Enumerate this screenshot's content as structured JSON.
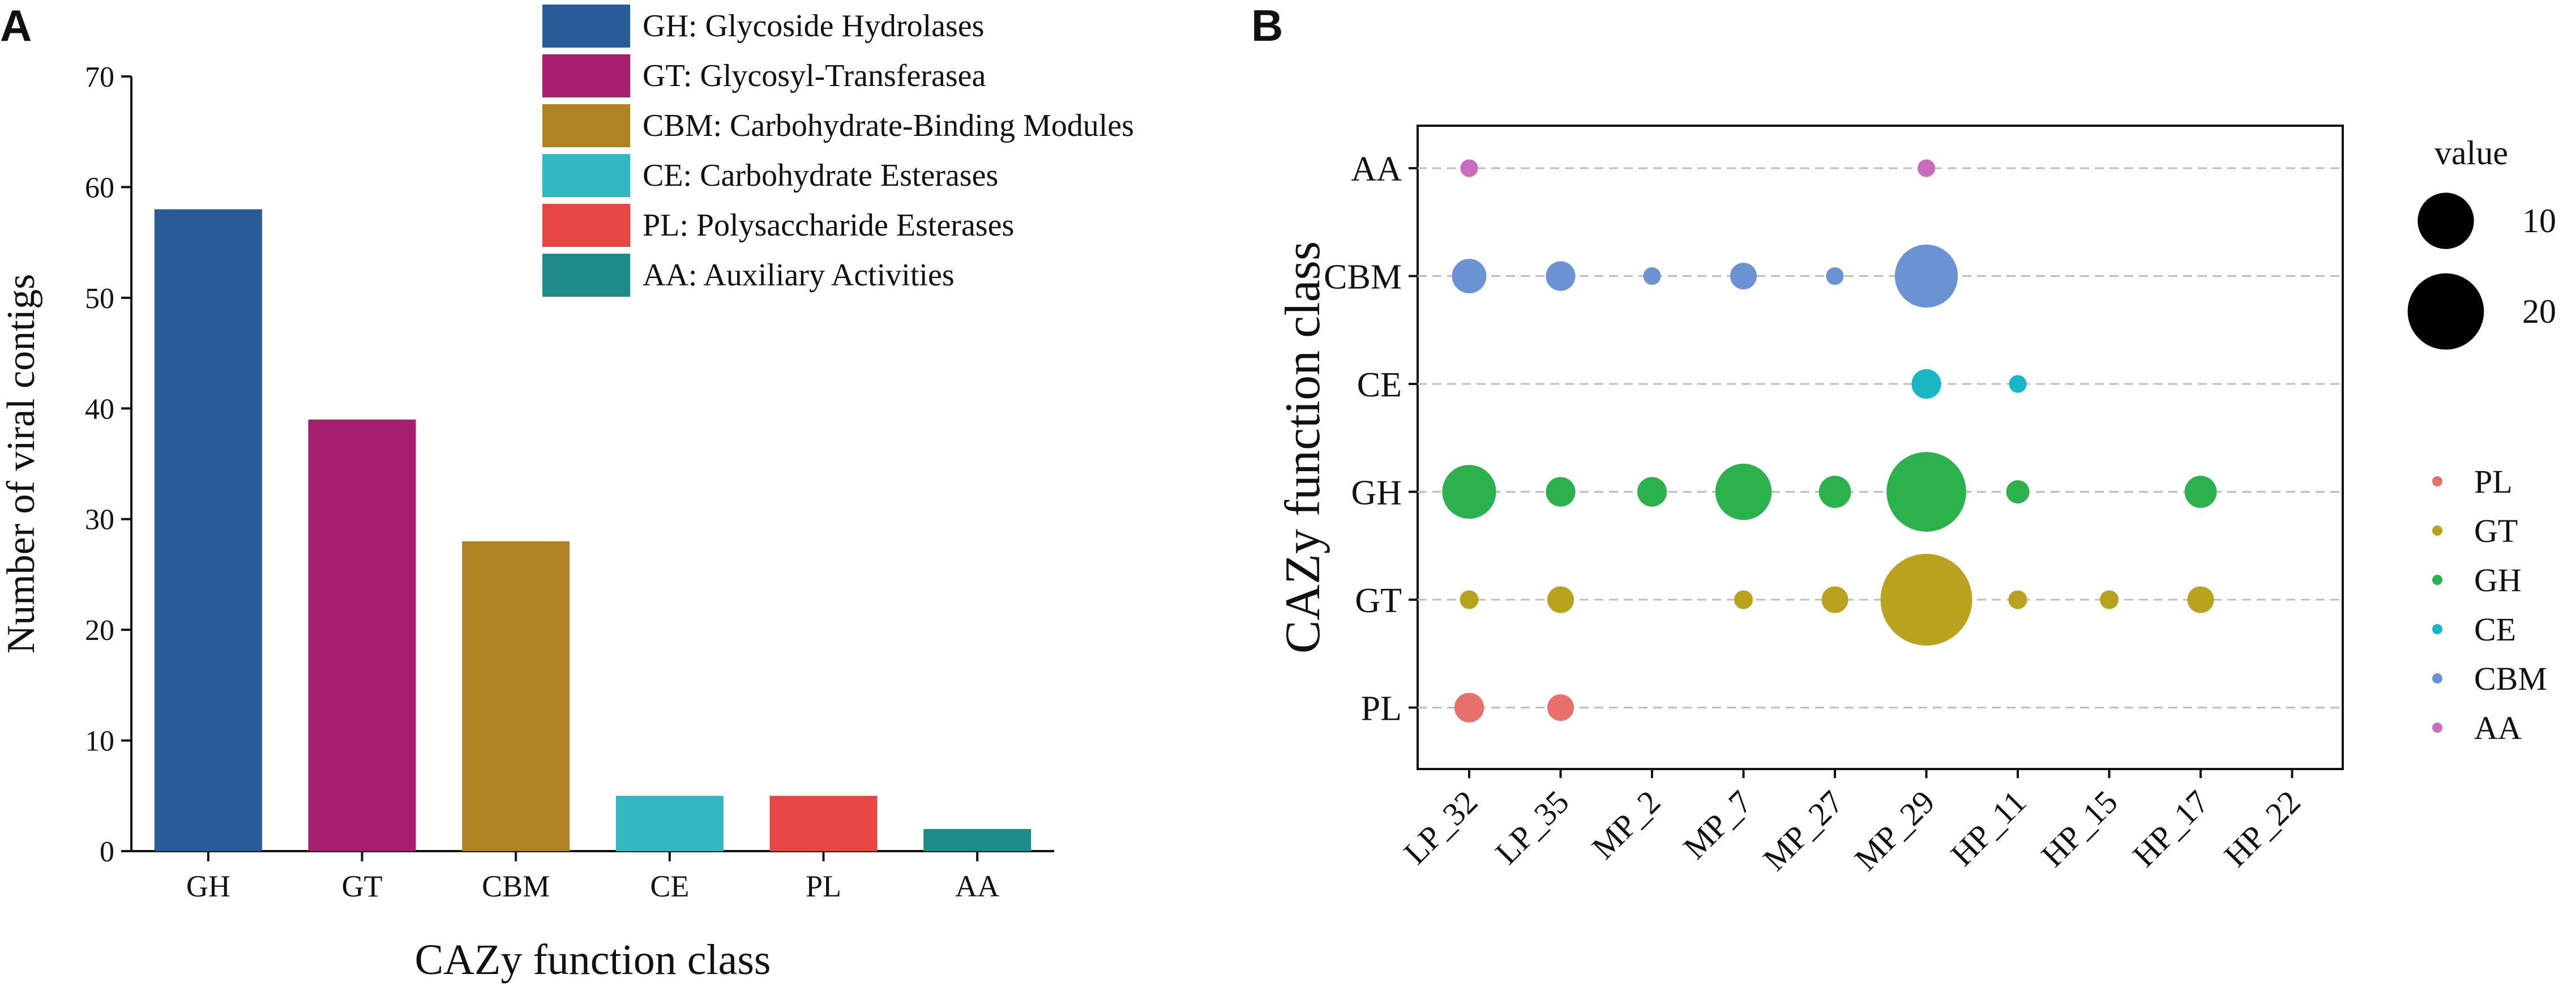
{
  "panel_labels": {
    "a": "A",
    "b": "B"
  },
  "chart_data": [
    {
      "type": "bar",
      "title": "",
      "categories": [
        "GH",
        "GT",
        "CBM",
        "CE",
        "PL",
        "AA"
      ],
      "tick_labels": [
        "GH",
        "GT",
        "CBM",
        "CE",
        "PL",
        "AA"
      ],
      "values": [
        58,
        39,
        28,
        5,
        5,
        2
      ],
      "colors": [
        "#285b97",
        "#a61f6c",
        "#ae8323",
        "#32b8c1",
        "#e84545",
        "#1e8b88"
      ],
      "xlabel": "CAZy function class",
      "ylabel": "Number of viral contigs",
      "ylim": [
        0,
        70
      ],
      "yticks": [
        0,
        10,
        20,
        30,
        40,
        50,
        60,
        70
      ],
      "legend": {
        "position": "top-right",
        "entries": [
          "GH: Glycoside Hydrolases",
          "GT: Glycosyl-Transferasea",
          "CBM: Carbohydrate-Binding Modules",
          "CE: Carbohydrate Esterases",
          "PL: Polysaccharide Esterases",
          "AA: Auxiliary Activities"
        ]
      }
    },
    {
      "type": "scatter",
      "subtype": "bubble",
      "title": "",
      "x_categories": [
        "LP_32",
        "LP_35",
        "MP_2",
        "MP_7",
        "MP_27",
        "MP_29",
        "HP_11",
        "HP_15",
        "HP_17",
        "HP_22"
      ],
      "y_categories": [
        "AA",
        "CBM",
        "CE",
        "GH",
        "GT",
        "PL"
      ],
      "ylabel": "CAZy function class",
      "xlabel": "",
      "grid": "dashed horizontal",
      "series": [
        {
          "name": "PL",
          "color": "#e8706a",
          "points": [
            {
              "x": "LP_32",
              "value": 2
            },
            {
              "x": "LP_35",
              "value": 1.5
            }
          ]
        },
        {
          "name": "GT",
          "color": "#b8a21e",
          "points": [
            {
              "x": "LP_32",
              "value": 0.5
            },
            {
              "x": "LP_35",
              "value": 1.5
            },
            {
              "x": "MP_7",
              "value": 0.5
            },
            {
              "x": "MP_27",
              "value": 1.5
            },
            {
              "x": "MP_29",
              "value": 30
            },
            {
              "x": "HP_11",
              "value": 0.5
            },
            {
              "x": "HP_15",
              "value": 0.5
            },
            {
              "x": "HP_17",
              "value": 1.5
            }
          ]
        },
        {
          "name": "GH",
          "color": "#2bb24c",
          "points": [
            {
              "x": "LP_32",
              "value": 9
            },
            {
              "x": "LP_35",
              "value": 2
            },
            {
              "x": "MP_2",
              "value": 2
            },
            {
              "x": "MP_7",
              "value": 10
            },
            {
              "x": "MP_27",
              "value": 2.5
            },
            {
              "x": "MP_29",
              "value": 22
            },
            {
              "x": "HP_11",
              "value": 1
            },
            {
              "x": "HP_17",
              "value": 2.5
            }
          ]
        },
        {
          "name": "CE",
          "color": "#19b6c6",
          "points": [
            {
              "x": "MP_29",
              "value": 2
            },
            {
              "x": "HP_11",
              "value": 0.4
            }
          ]
        },
        {
          "name": "CBM",
          "color": "#6b93d4",
          "points": [
            {
              "x": "LP_32",
              "value": 3
            },
            {
              "x": "LP_35",
              "value": 2
            },
            {
              "x": "MP_2",
              "value": 0.4
            },
            {
              "x": "MP_7",
              "value": 1.5
            },
            {
              "x": "MP_27",
              "value": 0.4
            },
            {
              "x": "MP_29",
              "value": 13
            }
          ]
        },
        {
          "name": "AA",
          "color": "#c96bbf",
          "points": [
            {
              "x": "LP_32",
              "value": 0.4
            },
            {
              "x": "MP_29",
              "value": 0.4
            }
          ]
        }
      ],
      "size_legend": {
        "title": "value",
        "values": [
          10,
          20
        ],
        "labels": [
          "10",
          "20"
        ],
        "position": "top-right"
      },
      "color_legend": {
        "position": "right",
        "entries": [
          "PL",
          "GT",
          "GH",
          "CE",
          "CBM",
          "AA"
        ]
      }
    }
  ]
}
